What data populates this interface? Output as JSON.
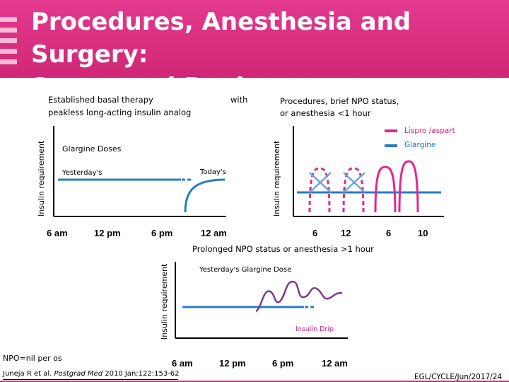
{
  "title": {
    "line1": "Procedures, Anesthesia and Surgery:",
    "line2": "Suggested Regimens"
  },
  "left_panel": {
    "heading_line1": "Established basal therapy",
    "heading_with": "with",
    "heading_line2": "peakless long-acting insulin analog",
    "y_axis_label": "Insulin requirement",
    "glargine_label": "Glargine Doses",
    "yesterday_label": "Yesterday's",
    "today_label": "Today's",
    "x_ticks": [
      "6 am",
      "12 pm",
      "6 pm",
      "12 am"
    ]
  },
  "right_panel": {
    "heading_line1": "Procedures, brief NPO status,",
    "heading_line2": "or anesthesia <1 hour",
    "y_axis_label": "Insulin requirement",
    "legend": [
      {
        "label": "Lispro /aspart",
        "color": "#e0288c"
      },
      {
        "label": "Glargine",
        "color": "#2a7bbf"
      }
    ],
    "x_ticks": [
      "6",
      "12",
      "6",
      "10"
    ]
  },
  "bottom_panel": {
    "heading": "Prolonged NPO status or anesthesia >1 hour",
    "y_axis_label": "Insulin requirement",
    "glargine_label": "Yesterday's Glargine Dose",
    "drip_label": "Insulin Drip",
    "x_ticks": [
      "6 am",
      "12 pm",
      "6 pm",
      "12 am"
    ]
  },
  "footer": {
    "npo_note": "NPO=nil per os",
    "citation_authors": "Juneja R et al.",
    "citation_journal": "Postgrad Med",
    "citation_details": "2010 Jan;122:153-62",
    "code": "EGL/CYCLE/Jun/2017/24"
  },
  "colors": {
    "header": "#d52b7b",
    "glargine": "#2a7bbf",
    "lispro": "#e0288c",
    "drip": "#7a3c8e"
  }
}
